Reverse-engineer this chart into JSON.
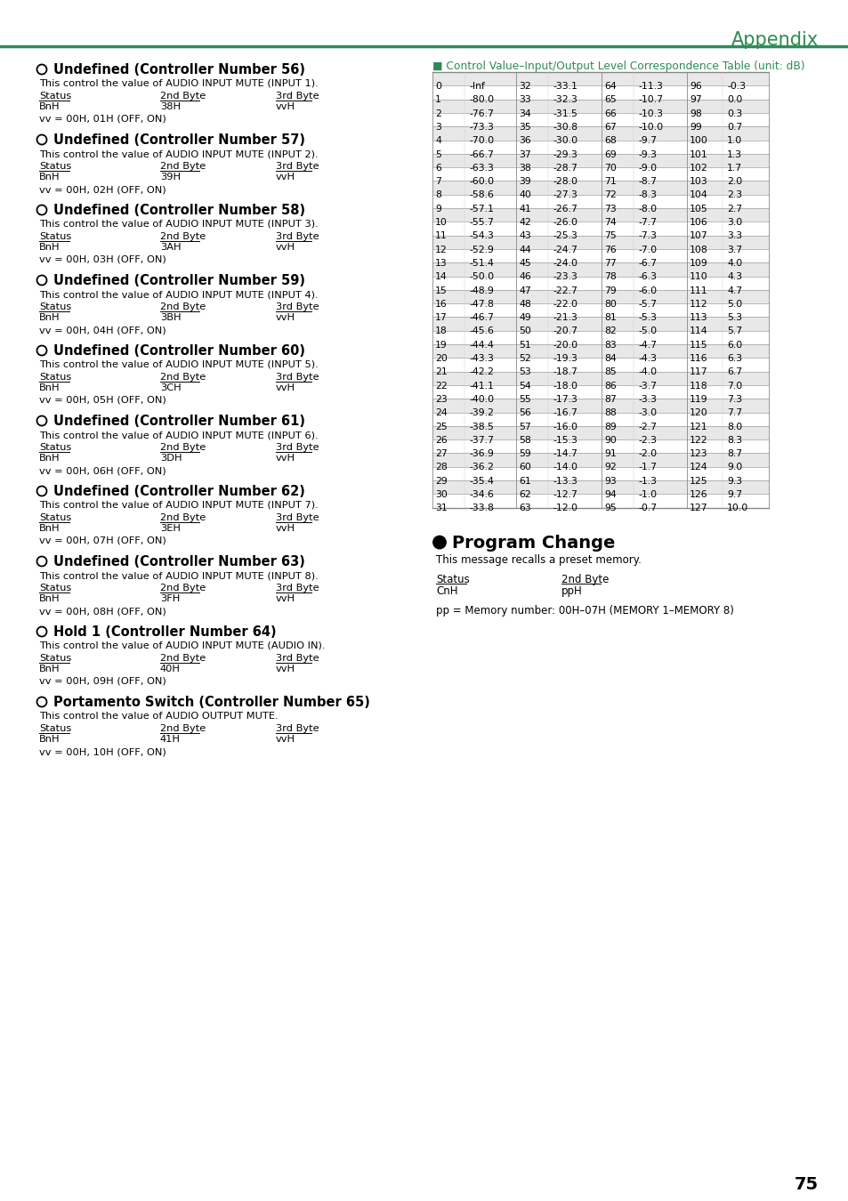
{
  "page_number": "75",
  "appendix_title": "Appendix",
  "header_line_color": "#2e8b57",
  "title_color": "#2e8b57",
  "left_sections": [
    {
      "title": "Undefined (Controller Number 56)",
      "description": "This control the value of AUDIO INPUT MUTE (INPUT 1).",
      "status": "BnH",
      "byte2": "38H",
      "byte3": "vvH",
      "note": "vv = 00H, 01H (OFF, ON)"
    },
    {
      "title": "Undefined (Controller Number 57)",
      "description": "This control the value of AUDIO INPUT MUTE (INPUT 2).",
      "status": "BnH",
      "byte2": "39H",
      "byte3": "vvH",
      "note": "vv = 00H, 02H (OFF, ON)"
    },
    {
      "title": "Undefined (Controller Number 58)",
      "description": "This control the value of AUDIO INPUT MUTE (INPUT 3).",
      "status": "BnH",
      "byte2": "3AH",
      "byte3": "vvH",
      "note": "vv = 00H, 03H (OFF, ON)"
    },
    {
      "title": "Undefined (Controller Number 59)",
      "description": "This control the value of AUDIO INPUT MUTE (INPUT 4).",
      "status": "BnH",
      "byte2": "3BH",
      "byte3": "vvH",
      "note": "vv = 00H, 04H (OFF, ON)"
    },
    {
      "title": "Undefined (Controller Number 60)",
      "description": "This control the value of AUDIO INPUT MUTE (INPUT 5).",
      "status": "BnH",
      "byte2": "3CH",
      "byte3": "vvH",
      "note": "vv = 00H, 05H (OFF, ON)"
    },
    {
      "title": "Undefined (Controller Number 61)",
      "description": "This control the value of AUDIO INPUT MUTE (INPUT 6).",
      "status": "BnH",
      "byte2": "3DH",
      "byte3": "vvH",
      "note": "vv = 00H, 06H (OFF, ON)"
    },
    {
      "title": "Undefined (Controller Number 62)",
      "description": "This control the value of AUDIO INPUT MUTE (INPUT 7).",
      "status": "BnH",
      "byte2": "3EH",
      "byte3": "vvH",
      "note": "vv = 00H, 07H (OFF, ON)"
    },
    {
      "title": "Undefined (Controller Number 63)",
      "description": "This control the value of AUDIO INPUT MUTE (INPUT 8).",
      "status": "BnH",
      "byte2": "3FH",
      "byte3": "vvH",
      "note": "vv = 00H, 08H (OFF, ON)"
    },
    {
      "title": "Hold 1 (Controller Number 64)",
      "description": "This control the value of AUDIO INPUT MUTE (AUDIO IN).",
      "status": "BnH",
      "byte2": "40H",
      "byte3": "vvH",
      "note": "vv = 00H, 09H (OFF, ON)"
    },
    {
      "title": "Portamento Switch (Controller Number 65)",
      "description": "This control the value of AUDIO OUTPUT MUTE.",
      "status": "BnH",
      "byte2": "41H",
      "byte3": "vvH",
      "note": "vv = 00H, 10H (OFF, ON)"
    }
  ],
  "table_title": "■ Control Value–Input/Output Level Correspondence Table (unit: dB)",
  "table_data": [
    [
      0,
      "-Inf",
      32,
      "-33.1",
      64,
      "-11.3",
      96,
      "-0.3"
    ],
    [
      1,
      "-80.0",
      33,
      "-32.3",
      65,
      "-10.7",
      97,
      "0.0"
    ],
    [
      2,
      "-76.7",
      34,
      "-31.5",
      66,
      "-10.3",
      98,
      "0.3"
    ],
    [
      3,
      "-73.3",
      35,
      "-30.8",
      67,
      "-10.0",
      99,
      "0.7"
    ],
    [
      4,
      "-70.0",
      36,
      "-30.0",
      68,
      "-9.7",
      100,
      "1.0"
    ],
    [
      5,
      "-66.7",
      37,
      "-29.3",
      69,
      "-9.3",
      101,
      "1.3"
    ],
    [
      6,
      "-63.3",
      38,
      "-28.7",
      70,
      "-9.0",
      102,
      "1.7"
    ],
    [
      7,
      "-60.0",
      39,
      "-28.0",
      71,
      "-8.7",
      103,
      "2.0"
    ],
    [
      8,
      "-58.6",
      40,
      "-27.3",
      72,
      "-8.3",
      104,
      "2.3"
    ],
    [
      9,
      "-57.1",
      41,
      "-26.7",
      73,
      "-8.0",
      105,
      "2.7"
    ],
    [
      10,
      "-55.7",
      42,
      "-26.0",
      74,
      "-7.7",
      106,
      "3.0"
    ],
    [
      11,
      "-54.3",
      43,
      "-25.3",
      75,
      "-7.3",
      107,
      "3.3"
    ],
    [
      12,
      "-52.9",
      44,
      "-24.7",
      76,
      "-7.0",
      108,
      "3.7"
    ],
    [
      13,
      "-51.4",
      45,
      "-24.0",
      77,
      "-6.7",
      109,
      "4.0"
    ],
    [
      14,
      "-50.0",
      46,
      "-23.3",
      78,
      "-6.3",
      110,
      "4.3"
    ],
    [
      15,
      "-48.9",
      47,
      "-22.7",
      79,
      "-6.0",
      111,
      "4.7"
    ],
    [
      16,
      "-47.8",
      48,
      "-22.0",
      80,
      "-5.7",
      112,
      "5.0"
    ],
    [
      17,
      "-46.7",
      49,
      "-21.3",
      81,
      "-5.3",
      113,
      "5.3"
    ],
    [
      18,
      "-45.6",
      50,
      "-20.7",
      82,
      "-5.0",
      114,
      "5.7"
    ],
    [
      19,
      "-44.4",
      51,
      "-20.0",
      83,
      "-4.7",
      115,
      "6.0"
    ],
    [
      20,
      "-43.3",
      52,
      "-19.3",
      84,
      "-4.3",
      116,
      "6.3"
    ],
    [
      21,
      "-42.2",
      53,
      "-18.7",
      85,
      "-4.0",
      117,
      "6.7"
    ],
    [
      22,
      "-41.1",
      54,
      "-18.0",
      86,
      "-3.7",
      118,
      "7.0"
    ],
    [
      23,
      "-40.0",
      55,
      "-17.3",
      87,
      "-3.3",
      119,
      "7.3"
    ],
    [
      24,
      "-39.2",
      56,
      "-16.7",
      88,
      "-3.0",
      120,
      "7.7"
    ],
    [
      25,
      "-38.5",
      57,
      "-16.0",
      89,
      "-2.7",
      121,
      "8.0"
    ],
    [
      26,
      "-37.7",
      58,
      "-15.3",
      90,
      "-2.3",
      122,
      "8.3"
    ],
    [
      27,
      "-36.9",
      59,
      "-14.7",
      91,
      "-2.0",
      123,
      "8.7"
    ],
    [
      28,
      "-36.2",
      60,
      "-14.0",
      92,
      "-1.7",
      124,
      "9.0"
    ],
    [
      29,
      "-35.4",
      61,
      "-13.3",
      93,
      "-1.3",
      125,
      "9.3"
    ],
    [
      30,
      "-34.6",
      62,
      "-12.7",
      94,
      "-1.0",
      126,
      "9.7"
    ],
    [
      31,
      "-33.8",
      63,
      "-12.0",
      95,
      "-0.7",
      127,
      "10.0"
    ]
  ],
  "table_row_color_odd": "#e8e8e8",
  "table_row_color_even": "#ffffff",
  "program_change_title": "Program Change",
  "program_change_desc": "This message recalls a preset memory.",
  "program_change_status": "CnH",
  "program_change_byte2": "ppH",
  "program_change_note": "pp = Memory number: 00H–07H (MEMORY 1–MEMORY 8)"
}
